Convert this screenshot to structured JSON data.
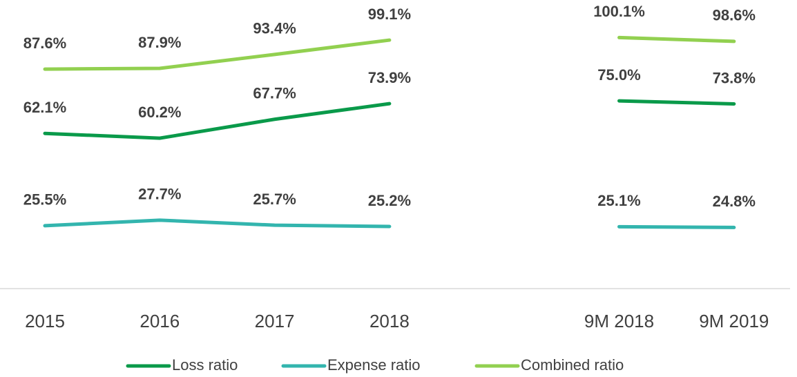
{
  "chart_data": {
    "type": "line",
    "categories": [
      "2015",
      "2016",
      "2017",
      "2018",
      null,
      "9M 2018",
      "9M 2019"
    ],
    "ylim": [
      0,
      115
    ],
    "series": [
      {
        "name": "Loss ratio",
        "color": "#0a9a4a",
        "values": [
          62.1,
          60.2,
          67.7,
          73.9,
          null,
          75.0,
          73.8
        ],
        "value_labels": [
          "62.1%",
          "60.2%",
          "67.7%",
          "73.9%",
          null,
          "75.0%",
          "73.8%"
        ]
      },
      {
        "name": "Expense ratio",
        "color": "#33b5ae",
        "values": [
          25.5,
          27.7,
          25.7,
          25.2,
          null,
          25.1,
          24.8
        ],
        "value_labels": [
          "25.5%",
          "27.7%",
          "25.7%",
          "25.2%",
          null,
          "25.1%",
          "24.8%"
        ]
      },
      {
        "name": "Combined ratio",
        "color": "#92d050",
        "values": [
          87.6,
          87.9,
          93.4,
          99.1,
          null,
          100.1,
          98.6
        ],
        "value_labels": [
          "87.6%",
          "87.9%",
          "93.4%",
          "99.1%",
          null,
          "100.1%",
          "98.6%"
        ]
      }
    ]
  }
}
